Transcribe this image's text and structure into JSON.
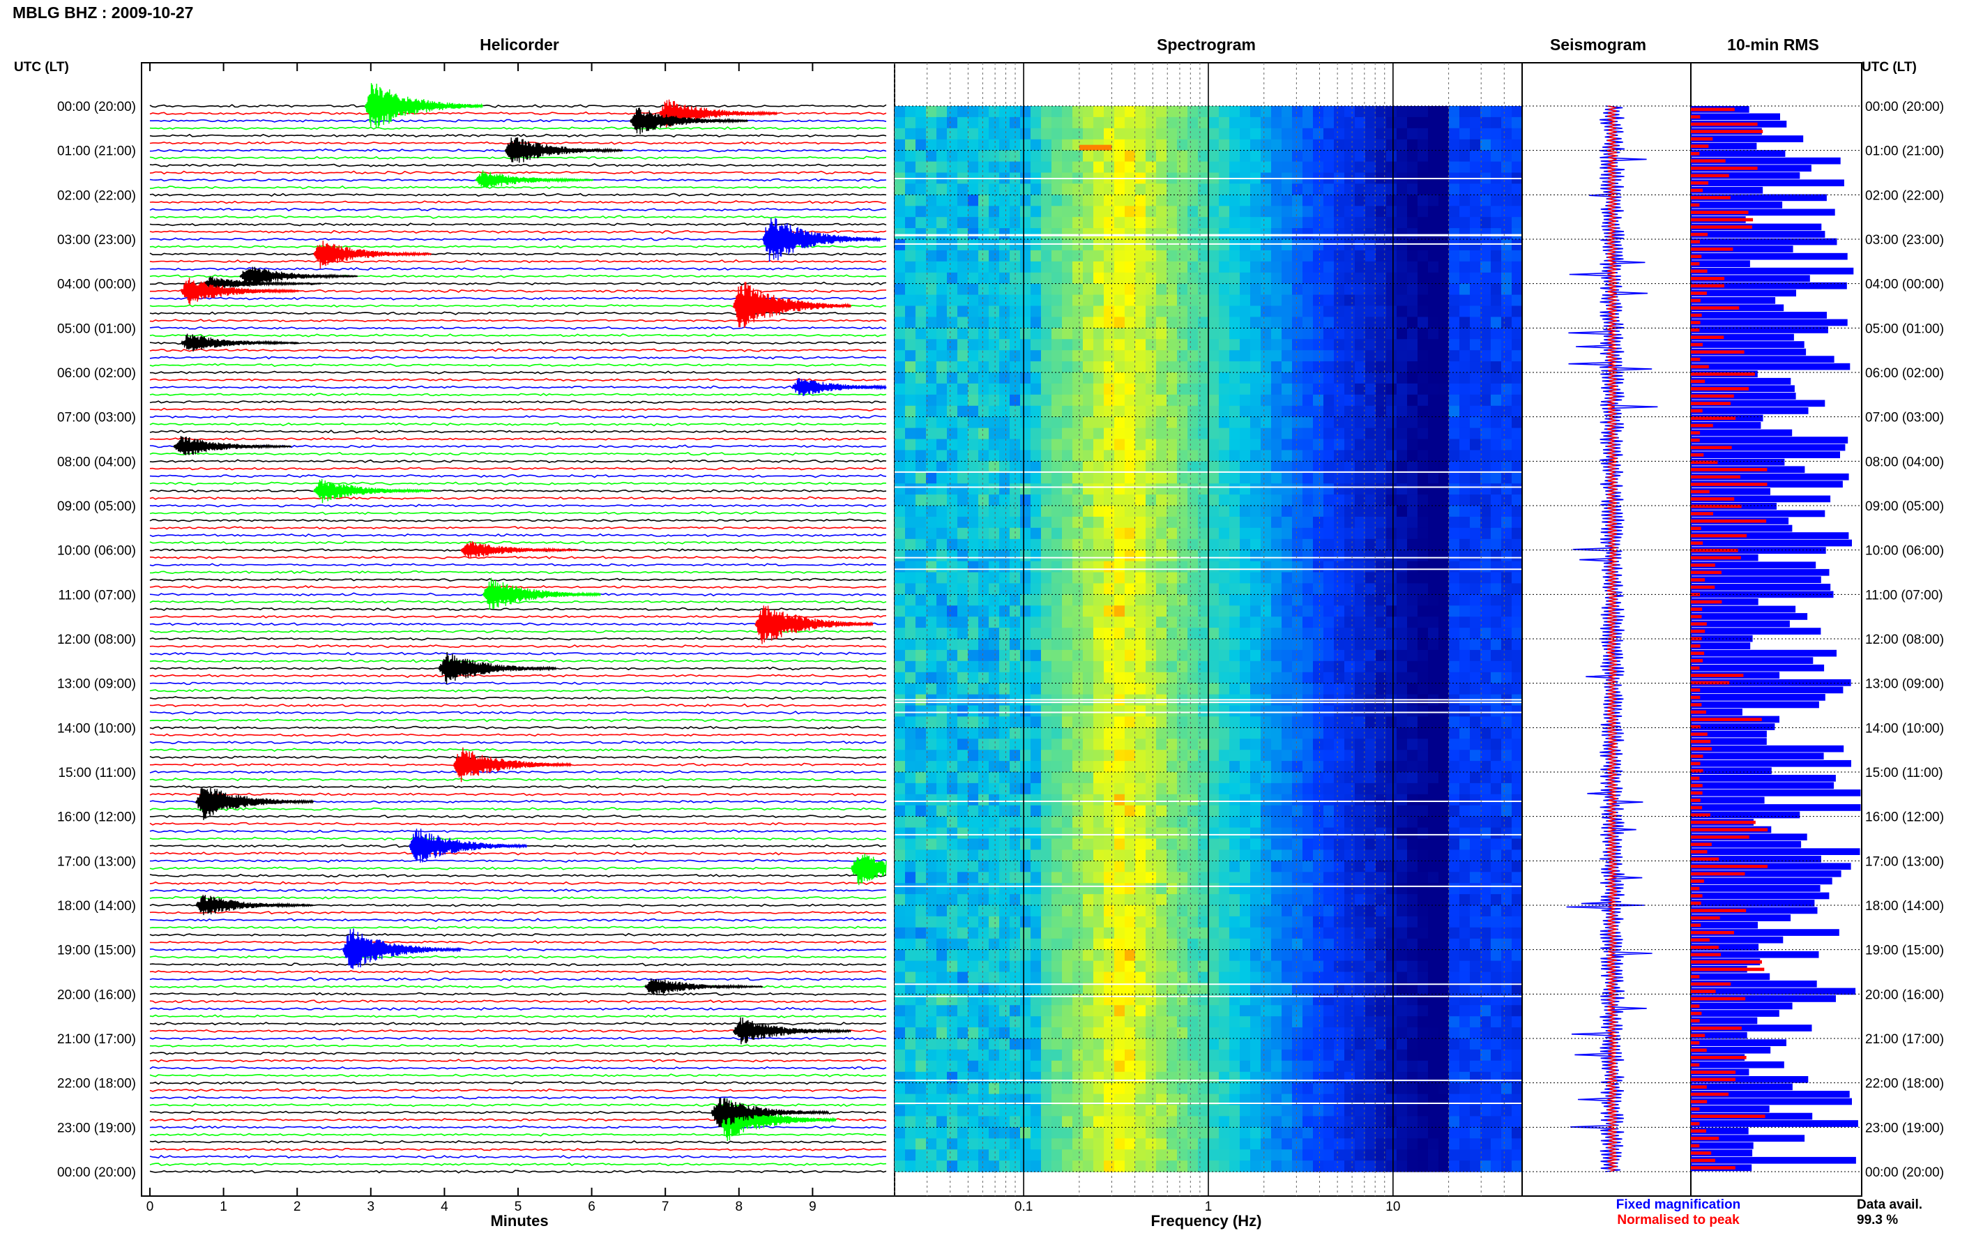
{
  "header": {
    "title": "MBLG BHZ : 2009-10-27"
  },
  "colors": {
    "trace": [
      "#000000",
      "#ff0000",
      "#0000ff",
      "#00ff00"
    ],
    "fixed": "#0000ff",
    "normalised": "#ff0000"
  },
  "chart_data": [
    {
      "type": "heatmap",
      "title": "Helicorder",
      "xlabel": "Minutes",
      "ylabel": "UTC (LT)",
      "xlim": [
        0,
        10
      ],
      "x_ticks": [
        "0",
        "1",
        "2",
        "3",
        "4",
        "5",
        "6",
        "7",
        "8",
        "9"
      ],
      "y_ticks": [
        "00:00 (20:00)",
        "01:00 (21:00)",
        "02:00 (22:00)",
        "03:00 (23:00)",
        "04:00 (00:00)",
        "05:00 (01:00)",
        "06:00 (02:00)",
        "07:00 (03:00)",
        "08:00 (04:00)",
        "09:00 (05:00)",
        "10:00 (06:00)",
        "11:00 (07:00)",
        "12:00 (08:00)",
        "13:00 (09:00)",
        "14:00 (10:00)",
        "15:00 (11:00)",
        "16:00 (12:00)",
        "17:00 (13:00)",
        "18:00 (14:00)",
        "19:00 (15:00)",
        "20:00 (16:00)",
        "21:00 (17:00)",
        "22:00 (18:00)",
        "23:00 (19:00)",
        "00:00 (20:00)"
      ],
      "rows": 145,
      "events": [
        {
          "row": 0,
          "minute": 3.0,
          "amp": 3.8,
          "color": 3
        },
        {
          "row": 1,
          "minute": 7.0,
          "amp": 2.2,
          "color": 1
        },
        {
          "row": 2,
          "minute": 6.6,
          "amp": 2.0,
          "color": 0
        },
        {
          "row": 6,
          "minute": 4.9,
          "amp": 2.2,
          "color": 0
        },
        {
          "row": 10,
          "minute": 4.5,
          "amp": 1.4,
          "color": 3
        },
        {
          "row": 18,
          "minute": 8.4,
          "amp": 3.6,
          "color": 2
        },
        {
          "row": 20,
          "minute": 2.3,
          "amp": 2.0,
          "color": 1
        },
        {
          "row": 23,
          "minute": 1.3,
          "amp": 1.6,
          "color": 0
        },
        {
          "row": 24,
          "minute": 0.8,
          "amp": 1.0,
          "color": 0
        },
        {
          "row": 27,
          "minute": 8.0,
          "amp": 3.8,
          "color": 1
        },
        {
          "row": 25,
          "minute": 0.5,
          "amp": 2.0,
          "color": 1
        },
        {
          "row": 32,
          "minute": 0.5,
          "amp": 1.4,
          "color": 0
        },
        {
          "row": 38,
          "minute": 8.8,
          "amp": 1.4,
          "color": 2
        },
        {
          "row": 46,
          "minute": 0.4,
          "amp": 1.6,
          "color": 0
        },
        {
          "row": 52,
          "minute": 2.3,
          "amp": 1.8,
          "color": 3
        },
        {
          "row": 60,
          "minute": 4.3,
          "amp": 1.4,
          "color": 1
        },
        {
          "row": 66,
          "minute": 4.6,
          "amp": 2.4,
          "color": 3
        },
        {
          "row": 70,
          "minute": 8.3,
          "amp": 3.2,
          "color": 1
        },
        {
          "row": 76,
          "minute": 4.0,
          "amp": 2.4,
          "color": 0
        },
        {
          "row": 89,
          "minute": 4.2,
          "amp": 2.6,
          "color": 1
        },
        {
          "row": 94,
          "minute": 0.7,
          "amp": 2.6,
          "color": 0
        },
        {
          "row": 100,
          "minute": 3.6,
          "amp": 2.8,
          "color": 2
        },
        {
          "row": 103,
          "minute": 9.6,
          "amp": 2.4,
          "color": 3
        },
        {
          "row": 108,
          "minute": 0.7,
          "amp": 1.6,
          "color": 0
        },
        {
          "row": 114,
          "minute": 2.7,
          "amp": 3.2,
          "color": 2
        },
        {
          "row": 119,
          "minute": 6.8,
          "amp": 1.4,
          "color": 0
        },
        {
          "row": 125,
          "minute": 8.0,
          "amp": 2.0,
          "color": 0
        },
        {
          "row": 137,
          "minute": 7.8,
          "amp": 3.2,
          "color": 3
        },
        {
          "row": 136,
          "minute": 7.7,
          "amp": 2.4,
          "color": 0
        }
      ]
    },
    {
      "type": "heatmap",
      "title": "Spectrogram",
      "xlabel": "Frequency (Hz)",
      "xscale": "log",
      "xlim": [
        0.02,
        50
      ],
      "x_ticks": [
        "0.1",
        "1",
        "10"
      ],
      "peak_band_hz": [
        0.2,
        0.6
      ],
      "hot_line_hz": [
        0.2,
        0.3
      ],
      "hot_line_hour": 1.0
    },
    {
      "type": "line",
      "title": "Seismogram",
      "series": [
        {
          "name": "Fixed magnification",
          "color": "#0000ff"
        },
        {
          "name": "Normalised to peak",
          "color": "#ff0000"
        }
      ]
    },
    {
      "type": "bar",
      "title": "10-min RMS",
      "orientation": "horizontal",
      "bins": 145,
      "blue_range": [
        0.3,
        1.0
      ],
      "red_range": [
        0.05,
        0.45
      ]
    }
  ],
  "footer": {
    "legend_fixed": "Fixed magnification",
    "legend_normalised": "Normalised to peak",
    "avail_label": "Data avail.",
    "avail_value": "99.3 %"
  }
}
